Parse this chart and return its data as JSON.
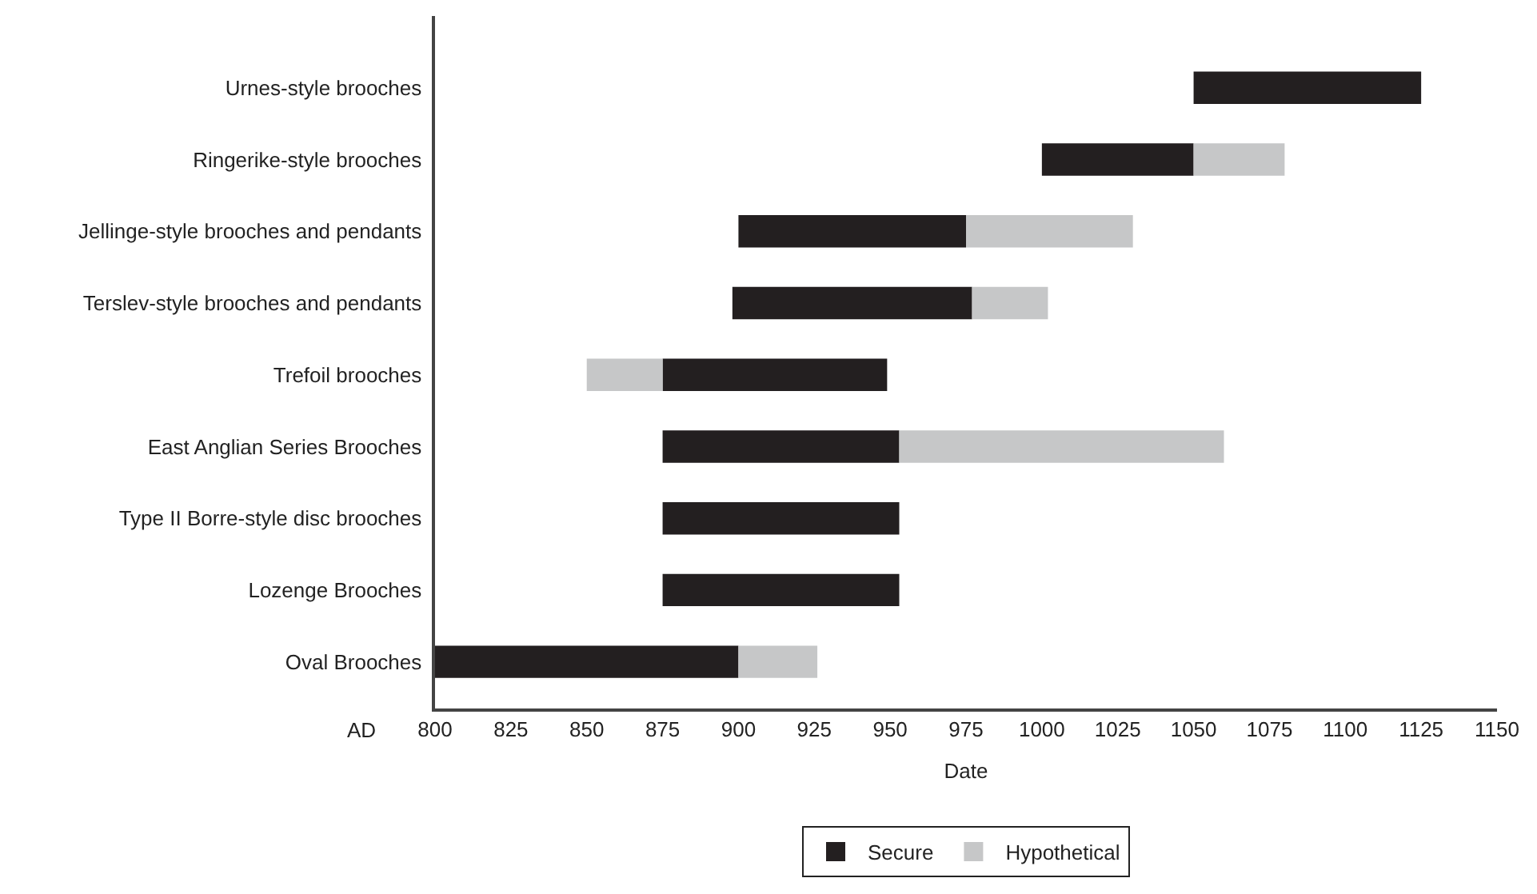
{
  "chart_data": {
    "type": "bar",
    "orientation": "horizontal",
    "xlabel": "Date",
    "categories": [
      "Urnes-style brooches",
      "Ringerike-style brooches",
      "Jellinge-style brooches and pendants",
      "Terslev-style brooches and pendants",
      "Trefoil brooches",
      "East Anglian Series Brooches",
      "Type II Borre-style disc brooches",
      "Lozenge Brooches",
      "Oval Brooches"
    ],
    "series": [
      {
        "name": "Secure",
        "color": "#231f20",
        "base": [
          1050,
          1000,
          900,
          898,
          875,
          875,
          875,
          875,
          800
        ],
        "values": [
          75,
          50,
          75,
          79,
          74,
          78,
          78,
          78,
          100
        ]
      },
      {
        "name": "Hypothetical",
        "color": "#c6c7c8",
        "base": [
          null,
          1050,
          975,
          977,
          850,
          953,
          null,
          null,
          900
        ],
        "values": [
          null,
          30,
          55,
          25,
          25,
          107,
          null,
          null,
          26
        ]
      }
    ],
    "xlim": [
      800,
      1150
    ],
    "xticks": [
      800,
      825,
      850,
      875,
      900,
      925,
      950,
      975,
      1000,
      1025,
      1050,
      1075,
      1100,
      1125,
      1150
    ],
    "annotations": [
      "AD"
    ],
    "legend": "bottom"
  }
}
